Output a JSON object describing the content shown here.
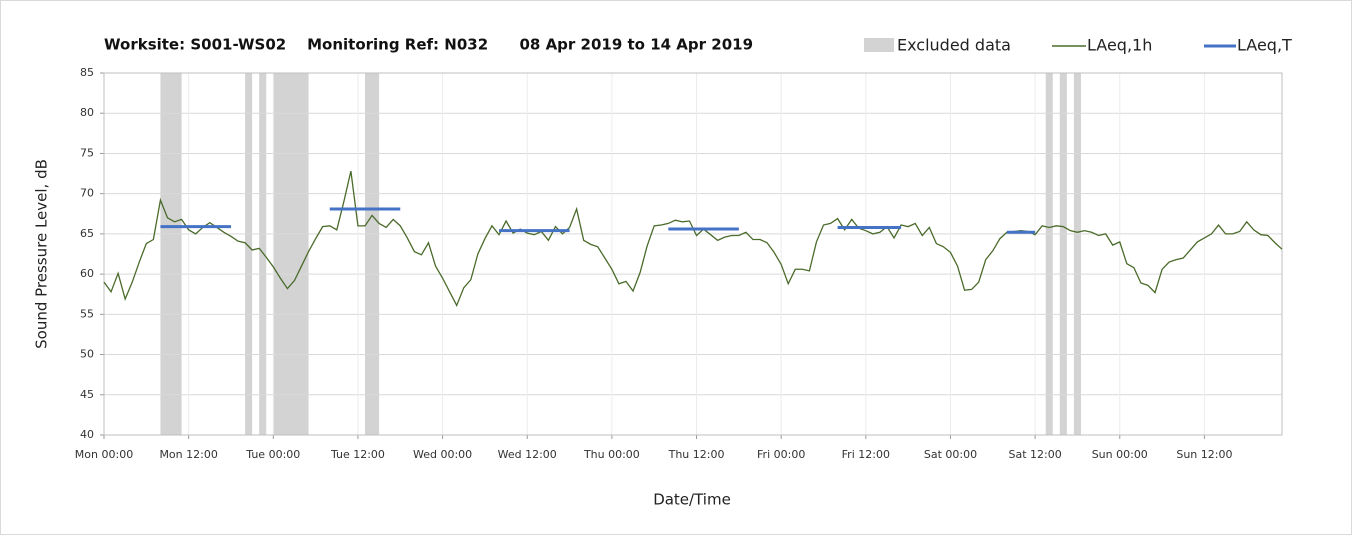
{
  "chart_data": {
    "type": "line",
    "title": "Worksite: S001-WS02    Monitoring Ref: N032      08 Apr 2019 to 14 Apr 2019",
    "xlabel": "Date/Time",
    "ylabel": "Sound Pressure Level, dB",
    "x": [
      0,
      1,
      2,
      3,
      4,
      5,
      6,
      7,
      8,
      9,
      10,
      11,
      12,
      13,
      14,
      15,
      16,
      17,
      18,
      19,
      20,
      21,
      22,
      23,
      24,
      25,
      26,
      27,
      28,
      29,
      30,
      31,
      32,
      33,
      34,
      35,
      36,
      37,
      38,
      39,
      40,
      41,
      42,
      43,
      44,
      45,
      46,
      47,
      48,
      49,
      50,
      51,
      52,
      53,
      54,
      55,
      56,
      57,
      58,
      59,
      60,
      61,
      62,
      63,
      64,
      65,
      66,
      67,
      68,
      69,
      70,
      71,
      72,
      73,
      74,
      75,
      76,
      77,
      78,
      79,
      80,
      81,
      82,
      83,
      84,
      85,
      86,
      87,
      88,
      89,
      90,
      91,
      92,
      93,
      94,
      95,
      96,
      97,
      98,
      99,
      100,
      101,
      102,
      103,
      104,
      105,
      106,
      107,
      108,
      109,
      110,
      111,
      112,
      113,
      114,
      115,
      116,
      117,
      118,
      119,
      120,
      121,
      122,
      123,
      124,
      125,
      126,
      127,
      128,
      129,
      130,
      131,
      132,
      133,
      134,
      135,
      136,
      137,
      138,
      139,
      140,
      141,
      142,
      143,
      144,
      145,
      146,
      147,
      148,
      149,
      150,
      151,
      152,
      153,
      154,
      155,
      156,
      157,
      158,
      159,
      160,
      161,
      162,
      163,
      164,
      165,
      166,
      167
    ],
    "series": [
      {
        "name": "LAeq,1h",
        "color": "#4a6b2a",
        "values": [
          59,
          57.8,
          60.1,
          56.9,
          59,
          61.5,
          63.8,
          64.3,
          69.2,
          67,
          66.5,
          66.8,
          65.5,
          65,
          65.8,
          66.4,
          65.8,
          65.2,
          64.7,
          64.1,
          63.9,
          63,
          63.2,
          62.1,
          60.9,
          59.5,
          58.2,
          59.2,
          61,
          62.8,
          64.4,
          65.9,
          66,
          65.5,
          69,
          72.8,
          66,
          66,
          67.3,
          66.3,
          65.8,
          66.8,
          66,
          64.5,
          62.8,
          62.4,
          63.9,
          61,
          59.5,
          57.8,
          56.1,
          58.3,
          59.3,
          62.5,
          64.4,
          66,
          64.9,
          66.6,
          65.1,
          65.6,
          65.1,
          64.9,
          65.3,
          64.2,
          65.9,
          65,
          65.8,
          68.1,
          64.2,
          63.7,
          63.4,
          62,
          60.6,
          58.8,
          59.1,
          57.9,
          60.2,
          63.5,
          66,
          66.1,
          66.3,
          66.7,
          66.5,
          66.6,
          64.8,
          65.6,
          64.9,
          64.2,
          64.6,
          64.8,
          64.8,
          65.2,
          64.3,
          64.3,
          63.9,
          62.7,
          61.2,
          58.8,
          60.6,
          60.6,
          60.4,
          64,
          66.1,
          66.3,
          66.9,
          65.5,
          66.8,
          65.7,
          65.4,
          65,
          65.2,
          65.9,
          64.5,
          66.1,
          65.9,
          66.3,
          64.8,
          65.8,
          63.8,
          63.4,
          62.7,
          61,
          58,
          58.1,
          59,
          61.8,
          62.9,
          64.4,
          65.2,
          65.3,
          65.4,
          65.3,
          64.9,
          66,
          65.8,
          66,
          65.9,
          65.4,
          65.2,
          65.4,
          65.2,
          64.8,
          65,
          63.6,
          64,
          61.3,
          60.8,
          58.9,
          58.6,
          57.7,
          60.6,
          61.5,
          61.8,
          62,
          63,
          64,
          64.5,
          65,
          66.1,
          65,
          65,
          65.3,
          66.5,
          65.5,
          64.9,
          64.8,
          63.9,
          63.1
        ]
      }
    ],
    "excluded": {
      "name": "Excluded data",
      "color": "#d3d3d3",
      "ranges": [
        [
          8,
          11
        ],
        [
          20,
          21
        ],
        [
          22,
          23
        ],
        [
          24,
          29
        ],
        [
          37,
          39
        ],
        [
          133.5,
          134.5
        ],
        [
          135.5,
          136.5
        ],
        [
          137.5,
          138.5
        ]
      ]
    },
    "period_averages": {
      "name": "LAeq,T",
      "color": "#4472c4",
      "segments": [
        {
          "x": [
            8,
            18
          ],
          "value": 65.9
        },
        {
          "x": [
            32,
            42
          ],
          "value": 68.1
        },
        {
          "x": [
            56,
            66
          ],
          "value": 65.4
        },
        {
          "x": [
            80,
            90
          ],
          "value": 65.6
        },
        {
          "x": [
            104,
            113
          ],
          "value": 65.8
        },
        {
          "x": [
            128,
            132
          ],
          "value": 65.2
        }
      ]
    },
    "xlim": [
      0,
      167
    ],
    "xticks": [
      {
        "value": 0,
        "label": "Mon 00:00"
      },
      {
        "value": 12,
        "label": "Mon 12:00"
      },
      {
        "value": 24,
        "label": "Tue 00:00"
      },
      {
        "value": 36,
        "label": "Tue 12:00"
      },
      {
        "value": 48,
        "label": "Wed 00:00"
      },
      {
        "value": 60,
        "label": "Wed 12:00"
      },
      {
        "value": 72,
        "label": "Thu 00:00"
      },
      {
        "value": 84,
        "label": "Thu 12:00"
      },
      {
        "value": 96,
        "label": "Fri 00:00"
      },
      {
        "value": 108,
        "label": "Fri 12:00"
      },
      {
        "value": 120,
        "label": "Sat 00:00"
      },
      {
        "value": 132,
        "label": "Sat 12:00"
      },
      {
        "value": 144,
        "label": "Sun 00:00"
      },
      {
        "value": 156,
        "label": "Sun 12:00"
      }
    ],
    "ylim": [
      40,
      85
    ],
    "yticks": [
      40,
      45,
      50,
      55,
      60,
      65,
      70,
      75,
      80,
      85
    ],
    "grid": true
  }
}
